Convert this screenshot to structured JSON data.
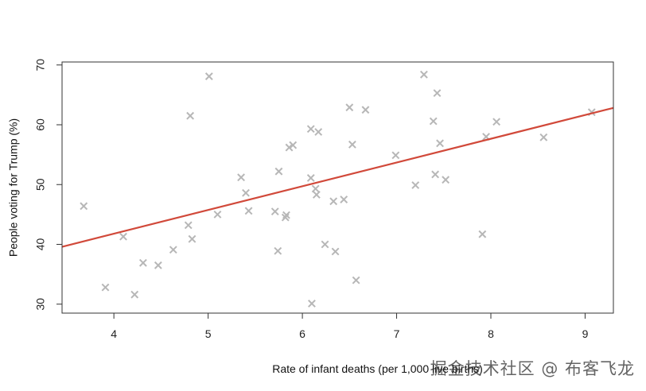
{
  "chart_data": {
    "type": "scatter",
    "xlabel": "Rate of infant deaths (per 1,000 live births)",
    "ylabel": "People voting for Trump (%)",
    "xlim": [
      3.45,
      9.3
    ],
    "ylim": [
      28.5,
      70.5
    ],
    "xticks": [
      4,
      5,
      6,
      7,
      8,
      9
    ],
    "yticks": [
      30,
      40,
      50,
      60,
      70
    ],
    "grid": false,
    "legend": "none",
    "marker": "x",
    "points_color": "#b7b7b7",
    "line_color": "#d1493a",
    "regression": {
      "intercept": 25.9,
      "slope": 3.97
    },
    "points": [
      {
        "x": 3.68,
        "y": 46.4
      },
      {
        "x": 3.91,
        "y": 32.8
      },
      {
        "x": 4.1,
        "y": 41.3
      },
      {
        "x": 4.22,
        "y": 31.6
      },
      {
        "x": 4.31,
        "y": 36.9
      },
      {
        "x": 4.47,
        "y": 36.5
      },
      {
        "x": 4.63,
        "y": 39.1
      },
      {
        "x": 4.79,
        "y": 43.2
      },
      {
        "x": 4.81,
        "y": 61.5
      },
      {
        "x": 4.83,
        "y": 40.9
      },
      {
        "x": 5.01,
        "y": 68.1
      },
      {
        "x": 5.1,
        "y": 45.0
      },
      {
        "x": 5.35,
        "y": 51.2
      },
      {
        "x": 5.4,
        "y": 48.6
      },
      {
        "x": 5.43,
        "y": 45.6
      },
      {
        "x": 5.71,
        "y": 45.5
      },
      {
        "x": 5.74,
        "y": 38.9
      },
      {
        "x": 5.75,
        "y": 52.2
      },
      {
        "x": 5.82,
        "y": 44.5
      },
      {
        "x": 5.83,
        "y": 44.9
      },
      {
        "x": 5.86,
        "y": 56.2
      },
      {
        "x": 5.9,
        "y": 56.6
      },
      {
        "x": 6.09,
        "y": 51.1
      },
      {
        "x": 6.09,
        "y": 59.3
      },
      {
        "x": 6.1,
        "y": 30.1
      },
      {
        "x": 6.14,
        "y": 49.3
      },
      {
        "x": 6.15,
        "y": 48.3
      },
      {
        "x": 6.17,
        "y": 58.8
      },
      {
        "x": 6.24,
        "y": 40.0
      },
      {
        "x": 6.33,
        "y": 47.2
      },
      {
        "x": 6.35,
        "y": 38.8
      },
      {
        "x": 6.44,
        "y": 47.5
      },
      {
        "x": 6.5,
        "y": 62.9
      },
      {
        "x": 6.53,
        "y": 56.7
      },
      {
        "x": 6.57,
        "y": 34.0
      },
      {
        "x": 6.67,
        "y": 62.5
      },
      {
        "x": 6.99,
        "y": 54.9
      },
      {
        "x": 7.2,
        "y": 49.9
      },
      {
        "x": 7.29,
        "y": 68.4
      },
      {
        "x": 7.39,
        "y": 60.6
      },
      {
        "x": 7.41,
        "y": 51.7
      },
      {
        "x": 7.43,
        "y": 65.3
      },
      {
        "x": 7.46,
        "y": 56.9
      },
      {
        "x": 7.52,
        "y": 50.8
      },
      {
        "x": 7.91,
        "y": 41.7
      },
      {
        "x": 7.95,
        "y": 58.0
      },
      {
        "x": 8.06,
        "y": 60.5
      },
      {
        "x": 8.56,
        "y": 57.9
      },
      {
        "x": 9.07,
        "y": 62.1
      }
    ]
  },
  "watermark": "掘金技术社区 @ 布客飞龙"
}
